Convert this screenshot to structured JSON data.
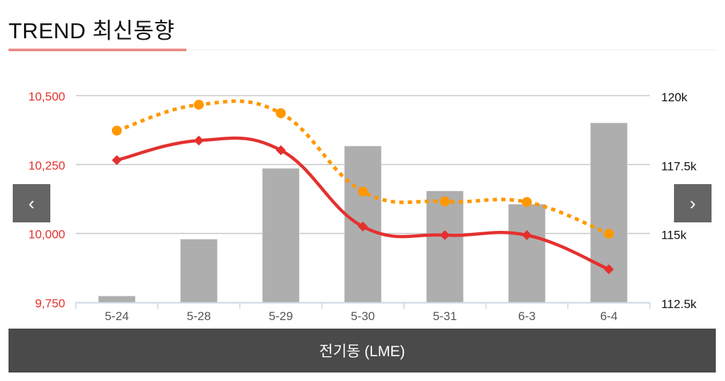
{
  "header": {
    "title": "TREND 최신동향"
  },
  "footer": {
    "label": "전기동 (LME)"
  },
  "nav": {
    "prev_icon": "chevron-left-icon",
    "next_icon": "chevron-right-icon"
  },
  "chart_data": {
    "type": "bar+line",
    "categories": [
      "5-24",
      "5-28",
      "5-29",
      "5-30",
      "5-31",
      "6-3",
      "6-4"
    ],
    "left_axis": {
      "ticks": [
        "9,750",
        "10,000",
        "10,250",
        "10,500"
      ],
      "range": [
        9750,
        10500
      ],
      "color": "#e4312f"
    },
    "right_axis": {
      "ticks": [
        "112.5k",
        "115k",
        "117.5k",
        "120k"
      ],
      "range": [
        112500,
        120000
      ],
      "color": "#111111"
    },
    "grid": true,
    "series": [
      {
        "type": "bar",
        "axis": "right",
        "color": "#aeaeae",
        "values": [
          112730,
          114790,
          117360,
          118170,
          116540,
          116060,
          119010
        ]
      },
      {
        "type": "line",
        "axis": "left",
        "color": "#e4312f",
        "marker": "diamond",
        "values": [
          10266,
          10337,
          10302,
          10025,
          9994,
          9994,
          9870
        ]
      },
      {
        "type": "line",
        "axis": "left",
        "color": "#ff9800",
        "marker": "circle",
        "dashed": true,
        "values": [
          10373,
          10467,
          10436,
          10152,
          10116,
          10114,
          9999
        ]
      }
    ]
  }
}
